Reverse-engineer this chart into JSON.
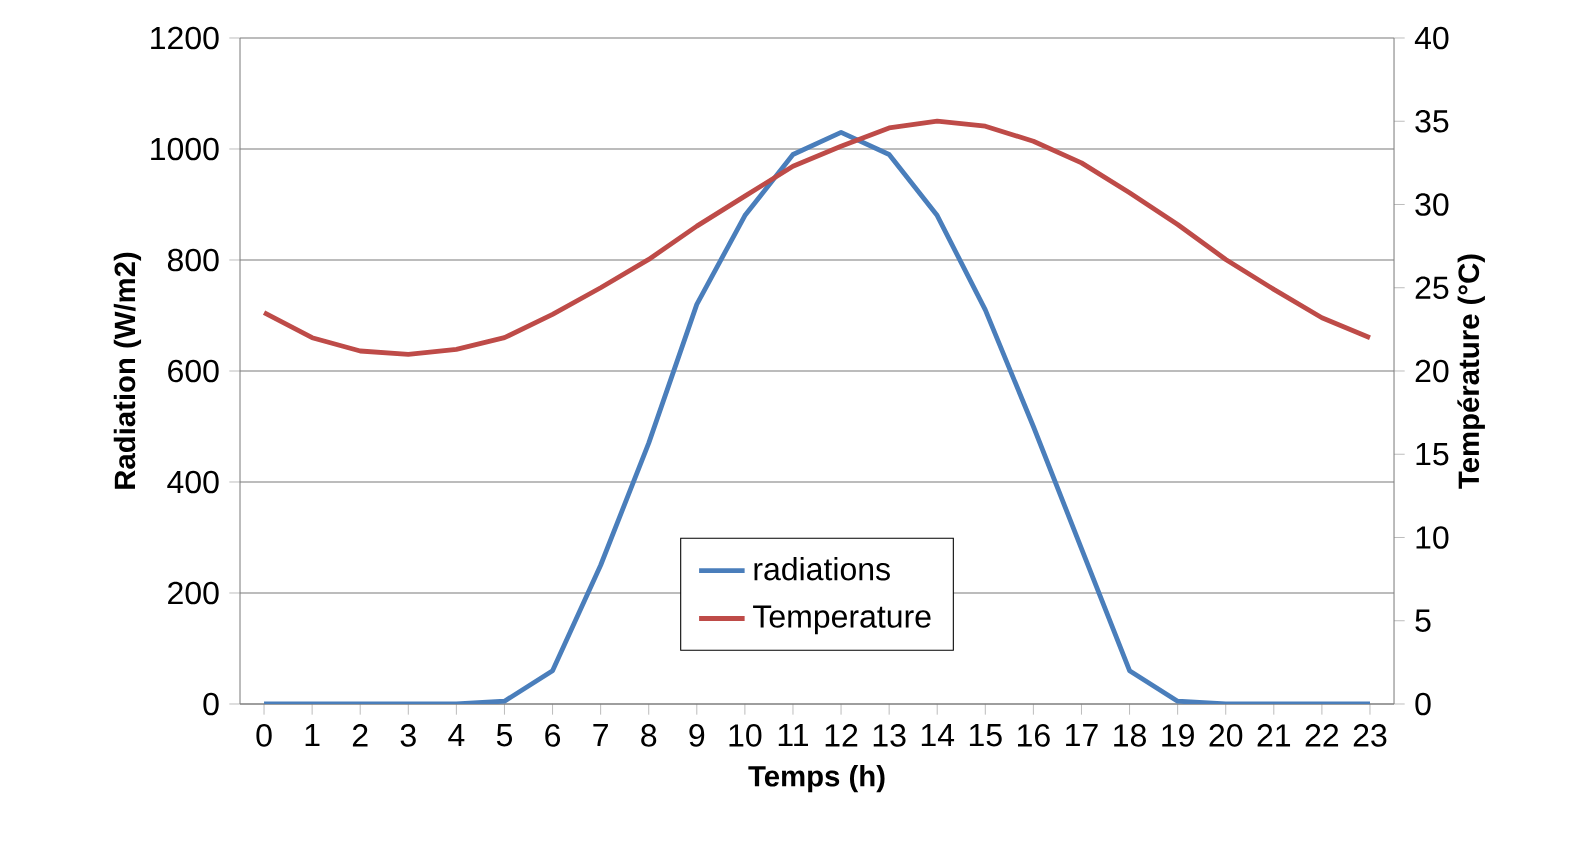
{
  "chart_data": {
    "type": "line",
    "xlabel": "Temps (h)",
    "ylabel": "Radiation (W/m2)",
    "y2label": "Température (°C)",
    "categories": [
      "0",
      "1",
      "2",
      "3",
      "4",
      "5",
      "6",
      "7",
      "8",
      "9",
      "10",
      "11",
      "12",
      "13",
      "14",
      "15",
      "16",
      "17",
      "18",
      "19",
      "20",
      "21",
      "22",
      "23"
    ],
    "series": [
      {
        "name": "radiations",
        "color": "#4a7ebb",
        "values": [
          0,
          0,
          0,
          0,
          0,
          5,
          60,
          250,
          470,
          720,
          880,
          990,
          1030,
          990,
          880,
          710,
          500,
          280,
          60,
          5,
          0,
          0,
          0,
          0
        ]
      },
      {
        "name": "Temperature",
        "color": "#be4b48",
        "axis": "y2",
        "values": [
          23.5,
          22,
          21.2,
          21,
          21.3,
          22,
          23.4,
          25,
          26.7,
          28.7,
          30.5,
          32.3,
          33.5,
          34.6,
          35,
          34.7,
          33.8,
          32.5,
          30.7,
          28.8,
          26.7,
          24.9,
          23.2,
          22
        ]
      }
    ],
    "ylim": [
      0,
      1200
    ],
    "yticks": [
      0,
      200,
      400,
      600,
      800,
      1000,
      1200
    ],
    "y2lim": [
      0,
      40
    ],
    "y2ticks": [
      0,
      5,
      10,
      15,
      20,
      25,
      30,
      35,
      40
    ],
    "grid": "y",
    "legend": "bottom",
    "marker": "none",
    "line_style": "solid"
  }
}
